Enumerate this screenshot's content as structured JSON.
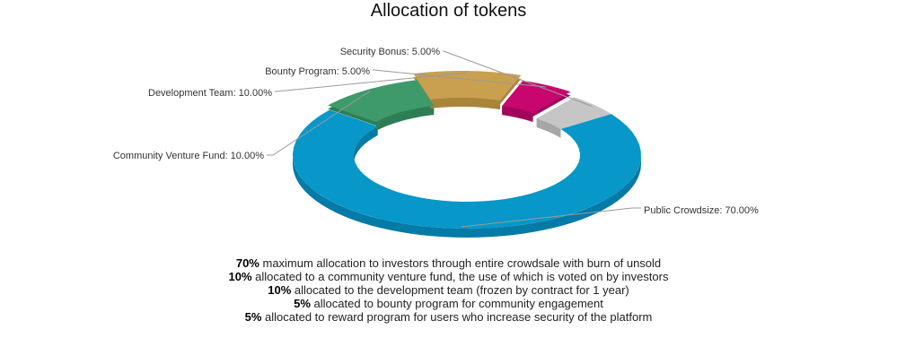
{
  "chart_data": {
    "type": "pie",
    "title": "Allocation of tokens",
    "slices": [
      {
        "label": "Public Crowdsize",
        "value": 70.0,
        "display": "Public Crowdsize: 70.00%",
        "color": "#0797c8",
        "side_color": "#047aa6"
      },
      {
        "label": "Community Venture Fund",
        "value": 10.0,
        "display": "Community Venture Fund:  10.00%",
        "color": "#3e9a6a",
        "side_color": "#2e7d54"
      },
      {
        "label": "Development Team",
        "value": 10.0,
        "display": "Development Team: 10.00%",
        "color": "#c9a04f",
        "side_color": "#a9843a"
      },
      {
        "label": "Bounty Program",
        "value": 5.0,
        "display": "Bounty Program: 5.00%",
        "color": "#c8066f",
        "side_color": "#a0055a"
      },
      {
        "label": "Security Bonus",
        "value": 5.0,
        "display": "Security Bonus: 5.00%",
        "color": "#c6c6c6",
        "side_color": "#a6a6a6"
      }
    ]
  },
  "notes": [
    {
      "pct": "70%",
      "text": " maximum allocation to investors through entire crowdsale with burn of unsold"
    },
    {
      "pct": "10%",
      "text": " allocated to a community venture fund, the use of which is voted on by investors"
    },
    {
      "pct": "10%",
      "text": " allocated to the development team (frozen by contract for 1 year)"
    },
    {
      "pct": "5%",
      "text": " allocated to bounty program for community engagement"
    },
    {
      "pct": "5%",
      "text": " allocated to reward program for users who increase security of the platform"
    }
  ]
}
